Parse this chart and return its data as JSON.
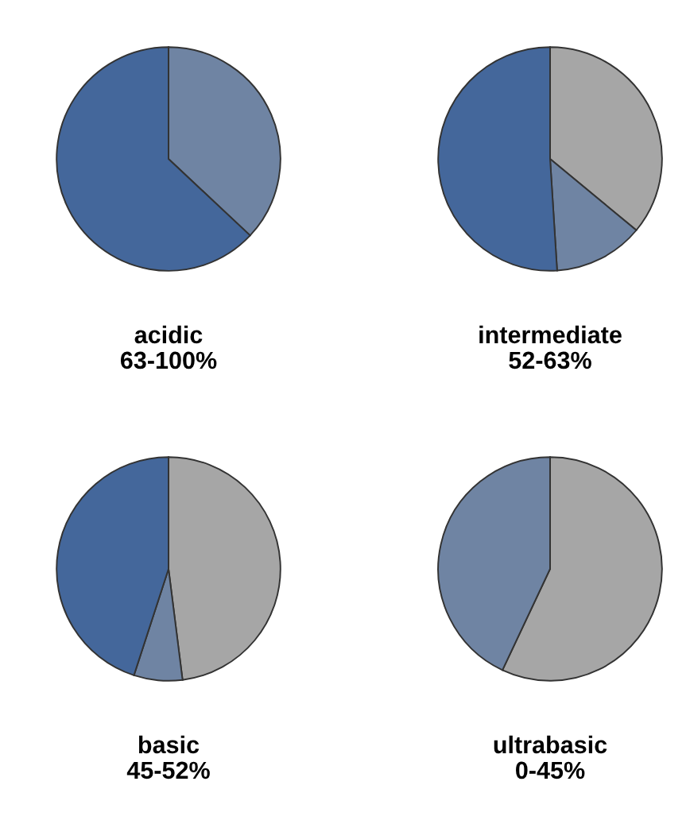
{
  "chart_data": [
    {
      "type": "pie",
      "title": "acidic",
      "subtitle": "63-100%",
      "categories": [
        null,
        null
      ],
      "values": [
        37,
        63
      ],
      "colors": [
        "#6f84a3",
        "#44679b"
      ]
    },
    {
      "type": "pie",
      "title": "intermediate",
      "subtitle": "52-63%",
      "categories": [
        null,
        null,
        null
      ],
      "values": [
        36,
        13,
        51
      ],
      "colors": [
        "#a6a6a6",
        "#6f84a3",
        "#44679b"
      ]
    },
    {
      "type": "pie",
      "title": "basic",
      "subtitle": "45-52%",
      "categories": [
        null,
        null,
        null
      ],
      "values": [
        48,
        7,
        45
      ],
      "colors": [
        "#a6a6a6",
        "#6f84a3",
        "#44679b"
      ]
    },
    {
      "type": "pie",
      "title": "ultrabasic",
      "subtitle": "0-45%",
      "categories": [
        null,
        null
      ],
      "values": [
        57,
        43
      ],
      "colors": [
        "#a6a6a6",
        "#6f84a3"
      ]
    }
  ]
}
